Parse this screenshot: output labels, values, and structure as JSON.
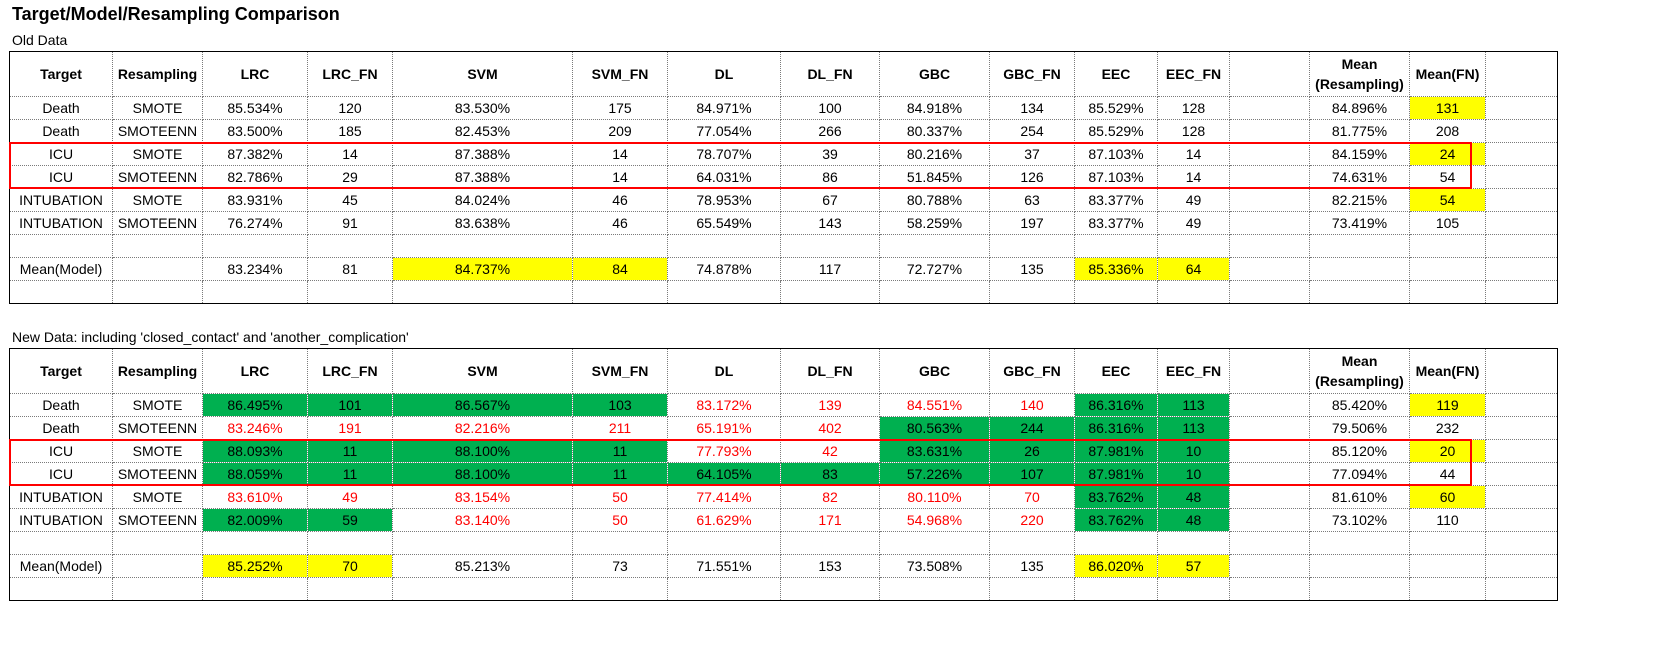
{
  "title": "Target/Model/Resampling Comparison",
  "old_label": "Old Data",
  "new_label": "New Data: including 'closed_contact' and 'another_complication'",
  "headers": [
    "Target",
    "Resampling",
    "LRC",
    "LRC_FN",
    "SVM",
    "SVM_FN",
    "DL",
    "DL_FN",
    "GBC",
    "GBC_FN",
    "EEC",
    "EEC_FN",
    "",
    "Mean (Resampling)",
    "Mean(FN)",
    ""
  ],
  "colors": {
    "yellow": "#ffff00",
    "green": "#00b050",
    "red_text": "#ff0000",
    "box": "#ff0000"
  },
  "old": {
    "rows": [
      {
        "target": "Death",
        "resampling": "SMOTE",
        "lrc": "85.534%",
        "lrc_fn": "120",
        "svm": "83.530%",
        "svm_fn": "175",
        "dl": "84.971%",
        "dl_fn": "100",
        "gbc": "84.918%",
        "gbc_fn": "134",
        "eec": "85.529%",
        "eec_fn": "128",
        "mean": "84.896%",
        "mean_fn": "131"
      },
      {
        "target": "Death",
        "resampling": "SMOTEENN",
        "lrc": "83.500%",
        "lrc_fn": "185",
        "svm": "82.453%",
        "svm_fn": "209",
        "dl": "77.054%",
        "dl_fn": "266",
        "gbc": "80.337%",
        "gbc_fn": "254",
        "eec": "85.529%",
        "eec_fn": "128",
        "mean": "81.775%",
        "mean_fn": "208"
      },
      {
        "target": "ICU",
        "resampling": "SMOTE",
        "lrc": "87.382%",
        "lrc_fn": "14",
        "svm": "87.388%",
        "svm_fn": "14",
        "dl": "78.707%",
        "dl_fn": "39",
        "gbc": "80.216%",
        "gbc_fn": "37",
        "eec": "87.103%",
        "eec_fn": "14",
        "mean": "84.159%",
        "mean_fn": "24"
      },
      {
        "target": "ICU",
        "resampling": "SMOTEENN",
        "lrc": "82.786%",
        "lrc_fn": "29",
        "svm": "87.388%",
        "svm_fn": "14",
        "dl": "64.031%",
        "dl_fn": "86",
        "gbc": "51.845%",
        "gbc_fn": "126",
        "eec": "87.103%",
        "eec_fn": "14",
        "mean": "74.631%",
        "mean_fn": "54"
      },
      {
        "target": "INTUBATION",
        "resampling": "SMOTE",
        "lrc": "83.931%",
        "lrc_fn": "45",
        "svm": "84.024%",
        "svm_fn": "46",
        "dl": "78.953%",
        "dl_fn": "67",
        "gbc": "80.788%",
        "gbc_fn": "63",
        "eec": "83.377%",
        "eec_fn": "49",
        "mean": "82.215%",
        "mean_fn": "54"
      },
      {
        "target": "INTUBATION",
        "resampling": "SMOTEENN",
        "lrc": "76.274%",
        "lrc_fn": "91",
        "svm": "83.638%",
        "svm_fn": "46",
        "dl": "65.549%",
        "dl_fn": "143",
        "gbc": "58.259%",
        "gbc_fn": "197",
        "eec": "83.377%",
        "eec_fn": "49",
        "mean": "73.419%",
        "mean_fn": "105"
      }
    ],
    "mean_model": {
      "label": "Mean(Model)",
      "lrc": "83.234%",
      "lrc_fn": "81",
      "svm": "84.737%",
      "svm_fn": "84",
      "dl": "74.878%",
      "dl_fn": "117",
      "gbc": "72.727%",
      "gbc_fn": "135",
      "eec": "85.336%",
      "eec_fn": "64"
    }
  },
  "new": {
    "rows": [
      {
        "target": "Death",
        "resampling": "SMOTE",
        "lrc": "86.495%",
        "lrc_fn": "101",
        "svm": "86.567%",
        "svm_fn": "103",
        "dl": "83.172%",
        "dl_fn": "139",
        "gbc": "84.551%",
        "gbc_fn": "140",
        "eec": "86.316%",
        "eec_fn": "113",
        "mean": "85.420%",
        "mean_fn": "119"
      },
      {
        "target": "Death",
        "resampling": "SMOTEENN",
        "lrc": "83.246%",
        "lrc_fn": "191",
        "svm": "82.216%",
        "svm_fn": "211",
        "dl": "65.191%",
        "dl_fn": "402",
        "gbc": "80.563%",
        "gbc_fn": "244",
        "eec": "86.316%",
        "eec_fn": "113",
        "mean": "79.506%",
        "mean_fn": "232"
      },
      {
        "target": "ICU",
        "resampling": "SMOTE",
        "lrc": "88.093%",
        "lrc_fn": "11",
        "svm": "88.100%",
        "svm_fn": "11",
        "dl": "77.793%",
        "dl_fn": "42",
        "gbc": "83.631%",
        "gbc_fn": "26",
        "eec": "87.981%",
        "eec_fn": "10",
        "mean": "85.120%",
        "mean_fn": "20"
      },
      {
        "target": "ICU",
        "resampling": "SMOTEENN",
        "lrc": "88.059%",
        "lrc_fn": "11",
        "svm": "88.100%",
        "svm_fn": "11",
        "dl": "64.105%",
        "dl_fn": "83",
        "gbc": "57.226%",
        "gbc_fn": "107",
        "eec": "87.981%",
        "eec_fn": "10",
        "mean": "77.094%",
        "mean_fn": "44"
      },
      {
        "target": "INTUBATION",
        "resampling": "SMOTE",
        "lrc": "83.610%",
        "lrc_fn": "49",
        "svm": "83.154%",
        "svm_fn": "50",
        "dl": "77.414%",
        "dl_fn": "82",
        "gbc": "80.110%",
        "gbc_fn": "70",
        "eec": "83.762%",
        "eec_fn": "48",
        "mean": "81.610%",
        "mean_fn": "60"
      },
      {
        "target": "INTUBATION",
        "resampling": "SMOTEENN",
        "lrc": "82.009%",
        "lrc_fn": "59",
        "svm": "83.140%",
        "svm_fn": "50",
        "dl": "61.629%",
        "dl_fn": "171",
        "gbc": "54.968%",
        "gbc_fn": "220",
        "eec": "83.762%",
        "eec_fn": "48",
        "mean": "73.102%",
        "mean_fn": "110"
      }
    ],
    "mean_model": {
      "label": "Mean(Model)",
      "lrc": "85.252%",
      "lrc_fn": "70",
      "svm": "85.213%",
      "svm_fn": "73",
      "dl": "71.551%",
      "dl_fn": "153",
      "gbc": "73.508%",
      "gbc_fn": "135",
      "eec": "86.020%",
      "eec_fn": "57"
    }
  }
}
